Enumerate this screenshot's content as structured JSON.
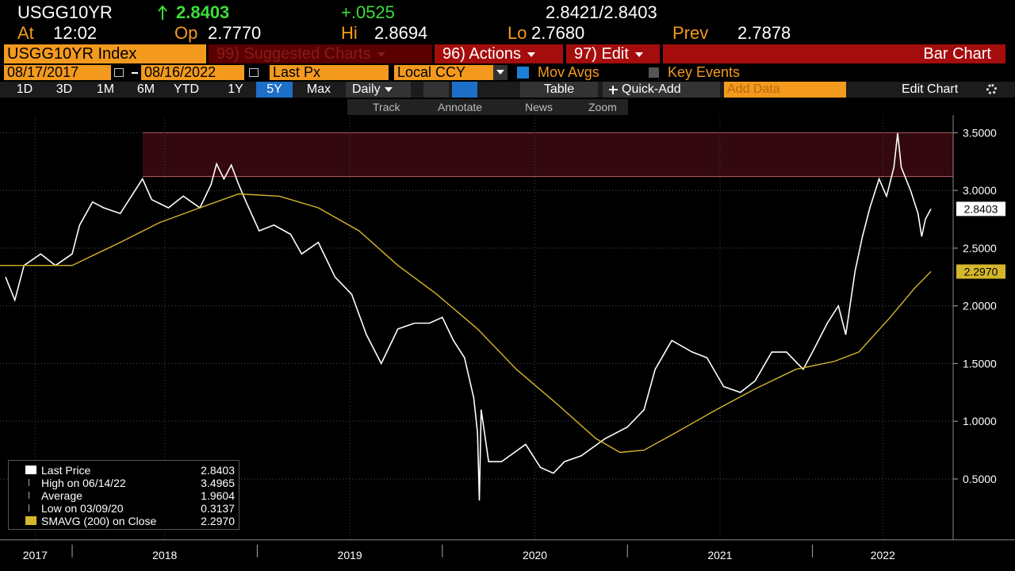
{
  "quote": {
    "ticker": "USGG10YR",
    "last": "2.8403",
    "change": "+.0525",
    "bid_ask": "2.8421/2.8403",
    "time_label": "At",
    "time": "12:02",
    "open_label": "Op",
    "open": "2.7770",
    "high_label": "Hi",
    "high": "2.8694",
    "low_label": "Lo",
    "low": "2.7680",
    "prev_label": "Prev",
    "prev": "2.7878"
  },
  "toolbar": {
    "security": "USGG10YR Index",
    "suggested": "99) Suggested Charts",
    "actions": "96) Actions",
    "edit": "97) Edit",
    "chart_type": "Bar Chart",
    "start_date": "08/17/2017",
    "end_date": "08/16/2022",
    "field": "Last Px",
    "currency": "Local CCY",
    "mov_avgs": "Mov Avgs",
    "key_events": "Key Events",
    "periods": [
      "1D",
      "3D",
      "1M",
      "6M",
      "YTD",
      "1Y",
      "5Y",
      "Max"
    ],
    "frequency": "Daily",
    "table": "Table",
    "quick_add": "Quick-Add",
    "add_data": "Add Data",
    "edit_chart": "Edit Chart",
    "tools": [
      "Track",
      "Annotate",
      "News",
      "Zoom"
    ]
  },
  "legend": {
    "rows": [
      {
        "label": "Last Price",
        "value": "2.8403"
      },
      {
        "label": "High on 06/14/22",
        "value": "3.4965"
      },
      {
        "label": "Average",
        "value": "1.9604"
      },
      {
        "label": "Low on 03/09/20",
        "value": "0.3137"
      },
      {
        "label": "SMAVG (200)  on Close",
        "value": "2.2970"
      }
    ]
  },
  "chart_data": {
    "type": "line",
    "grid": true,
    "xlim": [
      2017.61,
      2022.76
    ],
    "ylim": [
      0,
      3.75
    ],
    "xticks": [
      {
        "value": 2017.8,
        "label": "2017"
      },
      {
        "value": 2018.5,
        "label": "2018"
      },
      {
        "value": 2019.5,
        "label": "2019"
      },
      {
        "value": 2020.5,
        "label": "2020"
      },
      {
        "value": 2021.5,
        "label": "2021"
      },
      {
        "value": 2022.38,
        "label": "2022"
      }
    ],
    "yticks": [
      {
        "value": 0.5,
        "label": "0.5000"
      },
      {
        "value": 1,
        "label": "1.0000"
      },
      {
        "value": 1.5,
        "label": "1.5000"
      },
      {
        "value": 2,
        "label": "2.0000"
      },
      {
        "value": 2.5,
        "label": "2.5000"
      },
      {
        "value": 3,
        "label": "3.0000"
      },
      {
        "value": 3.5,
        "label": "3.5000"
      }
    ],
    "band": {
      "start": 2018.38,
      "ylim": [
        3.12,
        3.5
      ],
      "color": "#33080f",
      "edge_color": "#c25a66"
    },
    "series": [
      {
        "name": "Last Price",
        "color": "#ffffff",
        "x": [
          2017.64,
          2017.69,
          2017.74,
          2017.83,
          2017.91,
          2018.0,
          2018.04,
          2018.11,
          2018.17,
          2018.26,
          2018.32,
          2018.38,
          2018.43,
          2018.52,
          2018.6,
          2018.69,
          2018.75,
          2018.78,
          2018.82,
          2018.86,
          2018.9,
          2018.94,
          2019.01,
          2019.09,
          2019.18,
          2019.24,
          2019.33,
          2019.42,
          2019.51,
          2019.59,
          2019.67,
          2019.76,
          2019.85,
          2019.93,
          2020.0,
          2020.06,
          2020.12,
          2020.17,
          2020.19,
          2020.2,
          2020.21,
          2020.25,
          2020.32,
          2020.45,
          2020.53,
          2020.6,
          2020.66,
          2020.75,
          2020.88,
          2021.0,
          2021.09,
          2021.15,
          2021.24,
          2021.35,
          2021.43,
          2021.52,
          2021.61,
          2021.69,
          2021.78,
          2021.86,
          2021.95,
          2022.0,
          2022.08,
          2022.14,
          2022.18,
          2022.23,
          2022.27,
          2022.31,
          2022.36,
          2022.4,
          2022.44,
          2022.46,
          2022.48,
          2022.53,
          2022.57,
          2022.59,
          2022.61,
          2022.64
        ],
        "values": [
          2.25,
          2.05,
          2.35,
          2.45,
          2.35,
          2.45,
          2.7,
          2.9,
          2.85,
          2.8,
          2.95,
          3.1,
          2.92,
          2.85,
          2.95,
          2.85,
          3.05,
          3.23,
          3.1,
          3.22,
          3.05,
          2.9,
          2.65,
          2.7,
          2.62,
          2.45,
          2.55,
          2.25,
          2.1,
          1.75,
          1.5,
          1.8,
          1.85,
          1.85,
          1.9,
          1.7,
          1.55,
          1.2,
          0.9,
          0.3137,
          1.1,
          0.65,
          0.65,
          0.8,
          0.6,
          0.55,
          0.65,
          0.7,
          0.85,
          0.95,
          1.1,
          1.45,
          1.7,
          1.6,
          1.55,
          1.3,
          1.25,
          1.35,
          1.6,
          1.6,
          1.45,
          1.6,
          1.85,
          2.0,
          1.75,
          2.3,
          2.6,
          2.85,
          3.1,
          2.95,
          3.2,
          3.4965,
          3.2,
          3.0,
          2.8,
          2.6,
          2.75,
          2.8403
        ]
      },
      {
        "name": "SMAVG (200)",
        "color": "#d4b62c",
        "x": [
          2017.61,
          2018.0,
          2018.26,
          2018.47,
          2018.69,
          2018.9,
          2019.12,
          2019.33,
          2019.55,
          2019.76,
          2019.97,
          2020.19,
          2020.4,
          2020.62,
          2020.83,
          2020.96,
          2021.09,
          2021.26,
          2021.48,
          2021.69,
          2021.91,
          2022.12,
          2022.25,
          2022.42,
          2022.55,
          2022.64
        ],
        "values": [
          2.35,
          2.35,
          2.55,
          2.72,
          2.85,
          2.97,
          2.95,
          2.85,
          2.65,
          2.35,
          2.1,
          1.8,
          1.45,
          1.15,
          0.85,
          0.73,
          0.75,
          0.9,
          1.1,
          1.28,
          1.45,
          1.52,
          1.6,
          1.9,
          2.15,
          2.297
        ]
      }
    ]
  }
}
